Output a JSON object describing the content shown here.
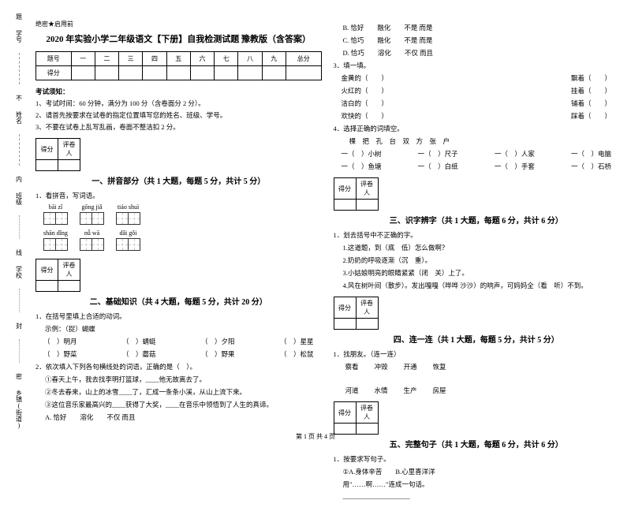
{
  "stub": {
    "items": [
      "学号",
      "姓名",
      "班级",
      "学校",
      "乡镇(街道)"
    ],
    "marks": [
      "题",
      "不",
      "内",
      "线",
      "封",
      "密"
    ]
  },
  "header": {
    "tag": "绝密★启用前",
    "title": "2020 年实验小学二年级语文【下册】自我检测试题 豫教版（含答案）"
  },
  "score": {
    "cols": [
      "题号",
      "一",
      "二",
      "三",
      "四",
      "五",
      "六",
      "七",
      "八",
      "九",
      "总分"
    ],
    "row2": "得分"
  },
  "notice": {
    "h": "考试须知：",
    "items": [
      "1、考试时间：60 分钟，满分为 100 分（含卷面分 2 分）。",
      "2、请首先按要求在试卷的指定位置填写您的姓名、班级、学号。",
      "3、不要在试卷上乱写乱画，卷面不整洁扣 2 分。"
    ]
  },
  "scorebox": {
    "c1": "得分",
    "c2": "评卷人"
  },
  "s1": {
    "title": "一、拼音部分（共 1 大题，每题 5 分，共计 5 分）",
    "q1": "1．看拼音，写词语。",
    "row1": [
      "bāi zǐ",
      "gōng jiǎ",
      "tiáo shuì"
    ],
    "row2": [
      "shān dǐng",
      "nǚ wā",
      "dǎi gǒi"
    ]
  },
  "s2": {
    "title": "二、基础知识（共 4 大题，每题 5 分，共计 20 分）",
    "q1": "1．在括号里填上合适的动词。",
    "eg": "示例：（捉）蝴蝶",
    "r1": [
      "（　）明月",
      "（　）蜻蜓",
      "（　）夕阳",
      "（　）星星"
    ],
    "r2": [
      "（　）野菜",
      "（　）蘑菇",
      "（　）野果",
      "（　）松鼠"
    ],
    "q2": "2．依次填入下列各句横线处的词语，正确的是（　）。",
    "l1": "①春天上午，我去找李明打篮球，____他无故离去了。",
    "l2": "②冬去春来，山上的冰雪____了，汇成一条条小溪，从山上流下来。",
    "l3": "③这位音乐家最高兴的____获得了大奖，____在音乐中领悟到了人生的真谛。",
    "opts": "A. 恰好　　溶化　　不仅 而且"
  },
  "rightTop": {
    "opts": [
      "B. 恰好　　融化　　不是 而是",
      "C. 恰巧　　融化　　不是 而是",
      "D. 恰巧　　溶化　　不仅 而且"
    ],
    "q3": "3．填一填。",
    "items": [
      [
        "金黄的（　　）",
        "飘着（　　）"
      ],
      [
        "火红的（　　）",
        "挂着（　　）"
      ],
      [
        "洁白的（　　）",
        "铺着（　　）"
      ],
      [
        "欢快的（　　）",
        "踩着（　　）"
      ]
    ],
    "q4": "4．选择正确的词填空。",
    "chars": "棵　把　孔　台　双　方　张　户",
    "f1": [
      "一（　）小树",
      "一（　）尺子",
      "一（　）人家",
      "一（　）电脑"
    ],
    "f2": [
      "一（　）鱼塘",
      "一（　）白纸",
      "一（　）手套",
      "一（　）石桥"
    ]
  },
  "s3": {
    "title": "三、识字辨字（共 1 大题，每题 6 分，共计 6 分）",
    "q": "1．划去括号中不正确的字。",
    "items": [
      "1.这道题，到（底　低）怎么做啊？",
      "2.奶奶的呼吸逐渐（沉　重）。",
      "3.小姑娘明亮的眼睛紧紧（闭　关）上了。",
      "4.风在树叶间（散步）。发出嘎嘎（哗哗 沙沙）的响声，可妈妈全（看　听）不到。"
    ]
  },
  "s4": {
    "title": "四、连一连（共 1 大题，每题 5 分，共计 5 分）",
    "q": "1．找朋友。（连一连）",
    "r1": [
      "察看",
      "冲毁",
      "开通",
      "恢复"
    ],
    "r2": [
      "河道",
      "水情",
      "生产",
      "房屋"
    ]
  },
  "s5": {
    "title": "五、完整句子（共 1 大题，每题 6 分，共计 6 分）",
    "q": "1．按要求写句子。",
    "opts": "①A.身体辛苦　　B.心里喜洋洋",
    "line": "用\"……啊……\"连成一句话。",
    "blank": "____________________"
  },
  "footer": "第 1 页 共 4 页"
}
